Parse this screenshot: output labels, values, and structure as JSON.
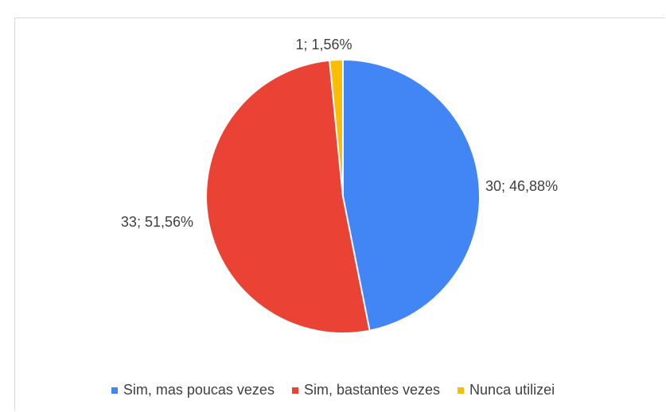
{
  "chart_data": {
    "type": "pie",
    "categories": [
      "Sim, mas poucas vezes",
      "Sim, bastantes vezes",
      "Nunca utilizei"
    ],
    "values": [
      30,
      33,
      1
    ],
    "percentages": [
      46.88,
      51.56,
      1.56
    ],
    "data_labels": [
      "30; 46,88%",
      "33; 51,56%",
      "1; 1,56%"
    ],
    "colors": [
      "#4285f4",
      "#ea4335",
      "#fbbc04"
    ],
    "legend_position": "bottom",
    "start_angle_deg": 0,
    "direction": "clockwise"
  }
}
